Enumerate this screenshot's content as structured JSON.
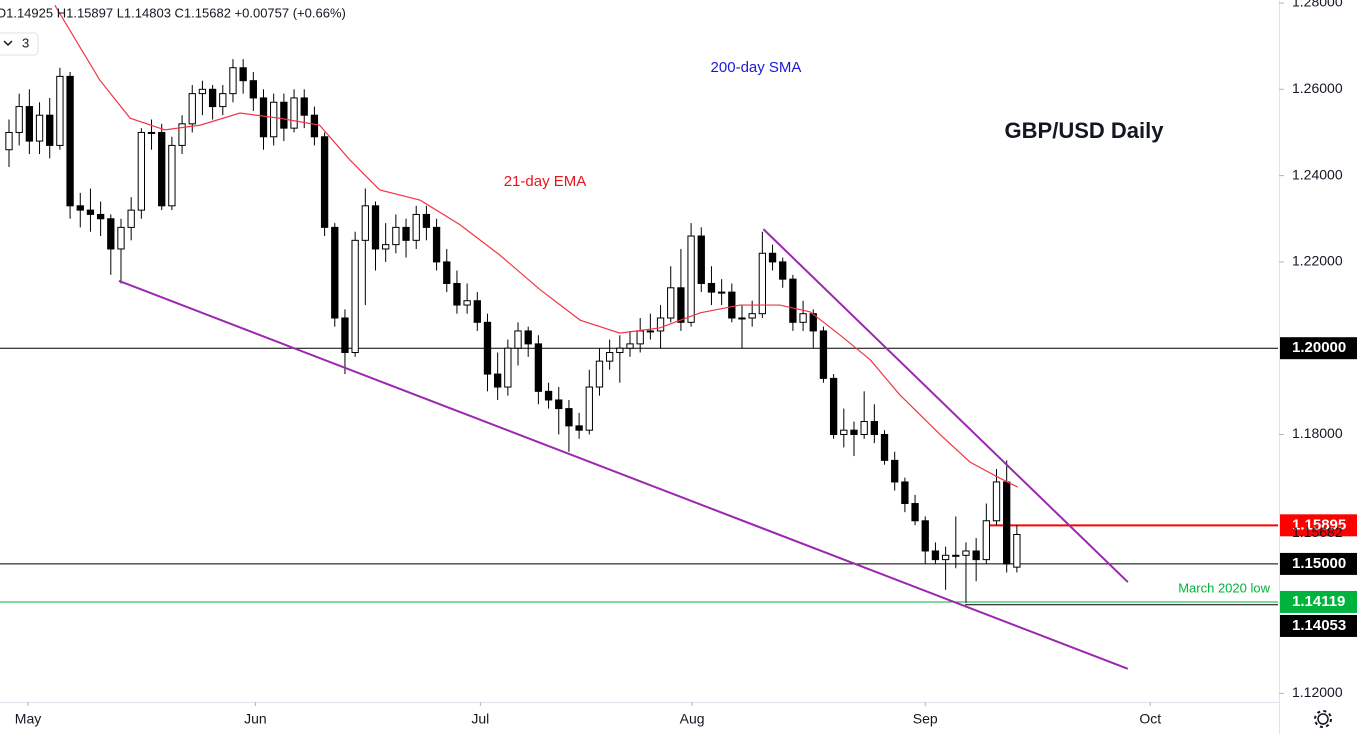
{
  "chart_data": {
    "type": "candlestick",
    "title": "GBP/USD Daily",
    "header": "O1.14925 H1.15897 L1.14803 C1.15682 +0.00757 (+0.66%)",
    "interval": "3",
    "sma_label": "200-day SMA",
    "up_color": "#ffffff",
    "down_color": "#000000",
    "ohlc": [
      [
        1.246,
        1.253,
        1.242,
        1.25
      ],
      [
        1.25,
        1.259,
        1.247,
        1.256
      ],
      [
        1.256,
        1.26,
        1.245,
        1.248
      ],
      [
        1.248,
        1.257,
        1.245,
        1.254
      ],
      [
        1.254,
        1.258,
        1.244,
        1.247
      ],
      [
        1.247,
        1.265,
        1.246,
        1.263
      ],
      [
        1.263,
        1.264,
        1.23,
        1.233
      ],
      [
        1.233,
        1.236,
        1.228,
        1.232
      ],
      [
        1.232,
        1.237,
        1.227,
        1.231
      ],
      [
        1.231,
        1.234,
        1.226,
        1.23
      ],
      [
        1.23,
        1.231,
        1.217,
        1.223
      ],
      [
        1.223,
        1.23,
        1.215,
        1.228
      ],
      [
        1.228,
        1.235,
        1.225,
        1.232
      ],
      [
        1.232,
        1.251,
        1.23,
        1.25
      ],
      [
        1.25,
        1.253,
        1.246,
        1.25
      ],
      [
        1.25,
        1.252,
        1.232,
        1.233
      ],
      [
        1.233,
        1.249,
        1.232,
        1.247
      ],
      [
        1.247,
        1.254,
        1.245,
        1.252
      ],
      [
        1.252,
        1.261,
        1.25,
        1.259
      ],
      [
        1.259,
        1.262,
        1.254,
        1.26
      ],
      [
        1.26,
        1.261,
        1.253,
        1.256
      ],
      [
        1.256,
        1.261,
        1.254,
        1.259
      ],
      [
        1.259,
        1.267,
        1.257,
        1.265
      ],
      [
        1.265,
        1.267,
        1.259,
        1.262
      ],
      [
        1.262,
        1.264,
        1.255,
        1.258
      ],
      [
        1.258,
        1.26,
        1.246,
        1.249
      ],
      [
        1.249,
        1.259,
        1.247,
        1.257
      ],
      [
        1.257,
        1.259,
        1.248,
        1.251
      ],
      [
        1.251,
        1.26,
        1.25,
        1.258
      ],
      [
        1.258,
        1.26,
        1.251,
        1.254
      ],
      [
        1.254,
        1.256,
        1.247,
        1.249
      ],
      [
        1.249,
        1.25,
        1.226,
        1.228
      ],
      [
        1.228,
        1.229,
        1.205,
        1.207
      ],
      [
        1.207,
        1.209,
        1.194,
        1.199
      ],
      [
        1.199,
        1.227,
        1.198,
        1.225
      ],
      [
        1.225,
        1.237,
        1.21,
        1.233
      ],
      [
        1.233,
        1.234,
        1.218,
        1.223
      ],
      [
        1.223,
        1.229,
        1.22,
        1.224
      ],
      [
        1.224,
        1.231,
        1.222,
        1.228
      ],
      [
        1.228,
        1.23,
        1.221,
        1.225
      ],
      [
        1.225,
        1.233,
        1.223,
        1.231
      ],
      [
        1.231,
        1.233,
        1.225,
        1.228
      ],
      [
        1.228,
        1.23,
        1.218,
        1.22
      ],
      [
        1.22,
        1.223,
        1.213,
        1.215
      ],
      [
        1.215,
        1.218,
        1.208,
        1.21
      ],
      [
        1.21,
        1.215,
        1.208,
        1.211
      ],
      [
        1.211,
        1.213,
        1.204,
        1.206
      ],
      [
        1.206,
        1.208,
        1.19,
        1.194
      ],
      [
        1.194,
        1.199,
        1.188,
        1.191
      ],
      [
        1.191,
        1.202,
        1.189,
        1.2
      ],
      [
        1.2,
        1.206,
        1.196,
        1.204
      ],
      [
        1.204,
        1.205,
        1.198,
        1.201
      ],
      [
        1.201,
        1.203,
        1.187,
        1.19
      ],
      [
        1.19,
        1.192,
        1.186,
        1.188
      ],
      [
        1.188,
        1.191,
        1.18,
        1.186
      ],
      [
        1.186,
        1.188,
        1.176,
        1.182
      ],
      [
        1.182,
        1.185,
        1.179,
        1.181
      ],
      [
        1.181,
        1.195,
        1.18,
        1.191
      ],
      [
        1.191,
        1.2,
        1.189,
        1.197
      ],
      [
        1.197,
        1.202,
        1.195,
        1.199
      ],
      [
        1.199,
        1.203,
        1.192,
        1.2
      ],
      [
        1.2,
        1.204,
        1.198,
        1.201
      ],
      [
        1.201,
        1.207,
        1.199,
        1.204
      ],
      [
        1.204,
        1.208,
        1.202,
        1.204
      ],
      [
        1.204,
        1.21,
        1.2,
        1.207
      ],
      [
        1.207,
        1.219,
        1.206,
        1.214
      ],
      [
        1.214,
        1.223,
        1.204,
        1.206
      ],
      [
        1.206,
        1.229,
        1.205,
        1.226
      ],
      [
        1.226,
        1.228,
        1.213,
        1.215
      ],
      [
        1.215,
        1.219,
        1.21,
        1.213
      ],
      [
        1.213,
        1.216,
        1.21,
        1.213
      ],
      [
        1.213,
        1.215,
        1.206,
        1.207
      ],
      [
        1.207,
        1.21,
        1.2,
        1.207
      ],
      [
        1.207,
        1.211,
        1.205,
        1.208
      ],
      [
        1.208,
        1.227,
        1.207,
        1.222
      ],
      [
        1.222,
        1.224,
        1.218,
        1.22
      ],
      [
        1.22,
        1.221,
        1.214,
        1.216
      ],
      [
        1.216,
        1.217,
        1.204,
        1.206
      ],
      [
        1.206,
        1.211,
        1.204,
        1.208
      ],
      [
        1.208,
        1.209,
        1.2,
        1.204
      ],
      [
        1.204,
        1.205,
        1.192,
        1.193
      ],
      [
        1.193,
        1.194,
        1.179,
        1.18
      ],
      [
        1.18,
        1.186,
        1.177,
        1.181
      ],
      [
        1.181,
        1.183,
        1.175,
        1.18
      ],
      [
        1.18,
        1.19,
        1.179,
        1.183
      ],
      [
        1.183,
        1.187,
        1.178,
        1.18
      ],
      [
        1.18,
        1.181,
        1.173,
        1.174
      ],
      [
        1.174,
        1.176,
        1.167,
        1.169
      ],
      [
        1.169,
        1.17,
        1.162,
        1.164
      ],
      [
        1.164,
        1.166,
        1.159,
        1.16
      ],
      [
        1.16,
        1.161,
        1.15,
        1.153
      ],
      [
        1.153,
        1.155,
        1.15,
        1.151
      ],
      [
        1.151,
        1.154,
        1.144,
        1.152
      ],
      [
        1.152,
        1.161,
        1.149,
        1.152
      ],
      [
        1.152,
        1.155,
        1.141,
        1.153
      ],
      [
        1.153,
        1.156,
        1.146,
        1.151
      ],
      [
        1.151,
        1.164,
        1.15,
        1.16
      ],
      [
        1.16,
        1.172,
        1.159,
        1.169
      ],
      [
        1.169,
        1.174,
        1.148,
        1.15
      ],
      [
        1.14925,
        1.15897,
        1.14803,
        1.15682
      ]
    ],
    "ema": {
      "name": "21-day EMA",
      "color": "#f23645",
      "x": [
        4.5,
        8.9,
        11.9,
        15.3,
        18.8,
        22.7,
        26.6,
        30.5,
        33.5,
        36.4,
        40.4,
        44.3,
        48.2,
        52.2,
        56.1,
        60.0,
        63.9,
        67.9,
        71.8,
        75.7,
        78.7,
        81.6,
        84.6,
        87.5,
        91.5,
        94.4,
        97.3,
        99.1
      ],
      "values": [
        1.2795,
        1.2622,
        1.2533,
        1.2506,
        1.2517,
        1.2545,
        1.2533,
        1.2517,
        1.2436,
        1.2367,
        1.2343,
        1.2286,
        1.2216,
        1.2135,
        1.2065,
        1.2035,
        1.2047,
        1.2082,
        1.21,
        1.21,
        1.2084,
        1.2031,
        1.1973,
        1.1892,
        1.1799,
        1.1736,
        1.1699,
        1.1678
      ]
    },
    "trendlines": [
      {
        "color": "#9c27b0",
        "x": [
          10.8,
          109.9
        ],
        "y": [
          1.2156,
          1.1257
        ]
      },
      {
        "color": "#9c27b0",
        "x": [
          74.1,
          109.9
        ],
        "y": [
          1.2276,
          1.1458
        ]
      }
    ],
    "levels": [
      {
        "value": 1.2,
        "label": "1.20000",
        "color": "#000000"
      },
      {
        "value": 1.15895,
        "label": "1.15895",
        "color": "#ff0000",
        "x_start": 95.9
      },
      {
        "value": 1.15,
        "label": "1.15000",
        "color": "#000000"
      },
      {
        "value": 1.14119,
        "label": "1.14119",
        "color": "#00b33c",
        "note": "March 2020 low"
      },
      {
        "value": 1.14053,
        "label": "1.14053",
        "color": "#000000",
        "x_start": 93.9
      }
    ],
    "xlim": [
      -0.884,
      124.65
    ],
    "ylim": [
      1.118,
      1.2807
    ],
    "xticks": [
      {
        "value": 1.87,
        "label": "May"
      },
      {
        "value": 24.2,
        "label": "Jun"
      },
      {
        "value": 46.3,
        "label": "Jul"
      },
      {
        "value": 67.1,
        "label": "Aug"
      },
      {
        "value": 90.0,
        "label": "Sep"
      },
      {
        "value": 112.1,
        "label": "Oct"
      }
    ],
    "yticks": [
      {
        "value": 1.28,
        "label": "1.28000"
      },
      {
        "value": 1.26,
        "label": "1.26000"
      },
      {
        "value": 1.24,
        "label": "1.24000"
      },
      {
        "value": 1.22,
        "label": "1.22000"
      },
      {
        "value": 1.18,
        "label": "1.18000"
      },
      {
        "value": 1.12,
        "label": "1.12000"
      }
    ]
  }
}
